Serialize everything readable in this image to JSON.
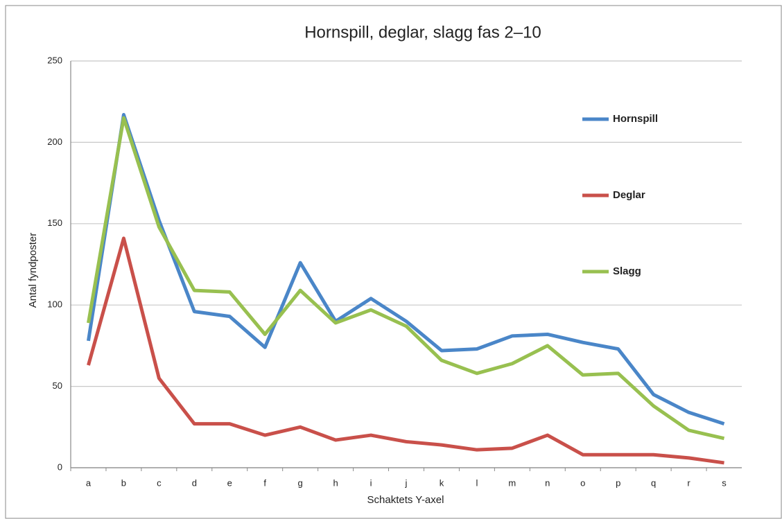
{
  "chart_data": {
    "type": "line",
    "title": "Hornspill, deglar, slagg fas 2–10",
    "x_label": "Schaktets Y-axel",
    "y_label": "Antal fyndposter",
    "categories": [
      "a",
      "b",
      "c",
      "d",
      "e",
      "f",
      "g",
      "h",
      "i",
      "j",
      "k",
      "l",
      "m",
      "n",
      "o",
      "p",
      "q",
      "r",
      "s"
    ],
    "series": [
      {
        "name": "Hornspill",
        "color": "#4a86c8",
        "values": [
          78,
          217,
          152,
          96,
          93,
          74,
          126,
          90,
          104,
          90,
          72,
          73,
          81,
          82,
          77,
          73,
          45,
          34,
          27
        ]
      },
      {
        "name": "Deglar",
        "color": "#c9504a",
        "values": [
          63,
          141,
          55,
          27,
          27,
          20,
          25,
          17,
          20,
          16,
          14,
          11,
          12,
          20,
          8,
          8,
          8,
          6,
          3
        ]
      },
      {
        "name": "Slagg",
        "color": "#98c050",
        "values": [
          89,
          215,
          148,
          109,
          108,
          82,
          109,
          89,
          97,
          87,
          66,
          58,
          64,
          75,
          57,
          58,
          38,
          23,
          18
        ]
      }
    ],
    "ylim": [
      0,
      250
    ],
    "yticks": [
      0,
      50,
      100,
      150,
      200,
      250
    ],
    "grid": true,
    "legend": "right"
  }
}
